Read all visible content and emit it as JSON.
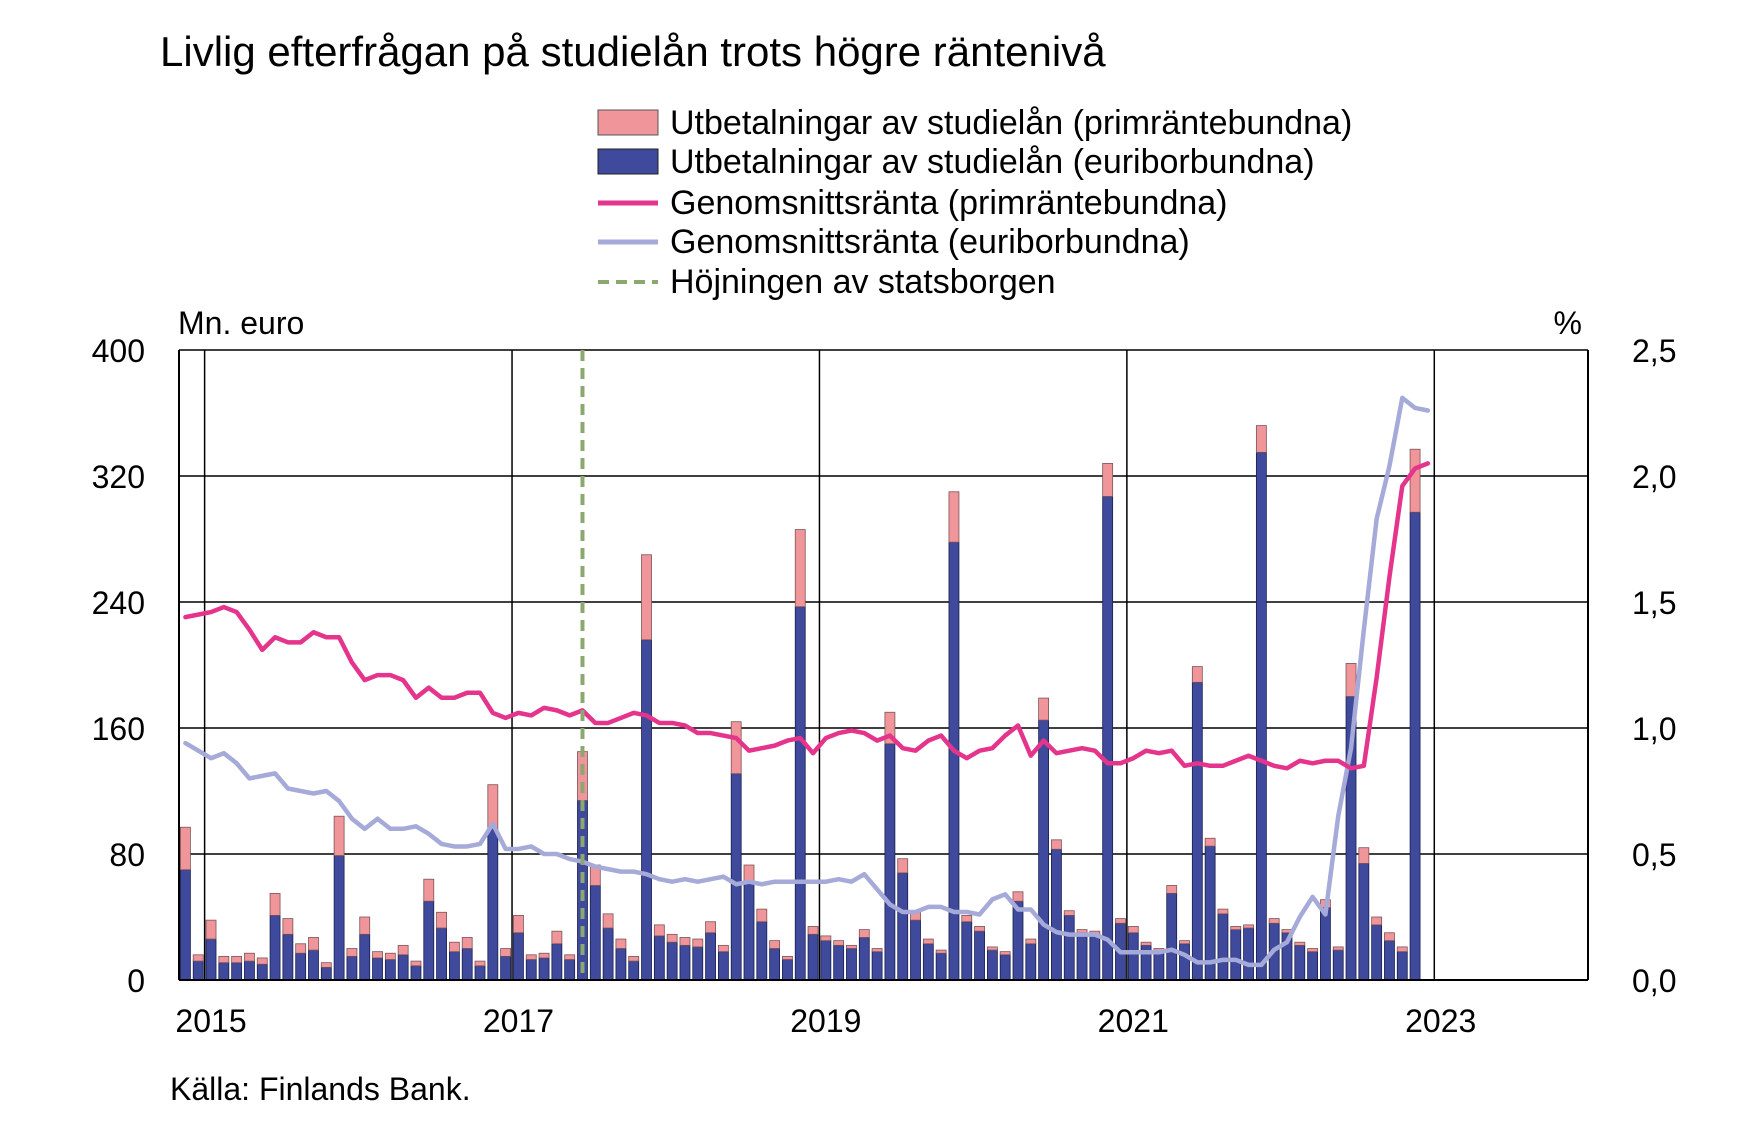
{
  "title": "Livlig efterfrågan på studielån trots högre räntenivå",
  "source": "Källa: Finlands Bank.",
  "colors": {
    "bar_prime": "#F0959A",
    "bar_euribor": "#3F4A9C",
    "line_prime": "#E5348C",
    "line_euribor": "#A5AAD9",
    "guarantee_line": "#8BA870"
  },
  "chart_data": {
    "type": "bar",
    "left_axis": {
      "label": "Mn. euro",
      "min": 0,
      "max": 400,
      "ticks": [
        "0",
        "80",
        "160",
        "240",
        "320",
        "400"
      ]
    },
    "right_axis": {
      "label": "%",
      "min": 0,
      "max": 2.5,
      "ticks": [
        "0,0",
        "0,5",
        "1,0",
        "1,5",
        "2,0",
        "2,5"
      ]
    },
    "x_axis": {
      "start": "2014-11",
      "end": "2023-12",
      "tick_labels": [
        "2015",
        "2017",
        "2019",
        "2021",
        "2023"
      ],
      "tick_years": [
        2015,
        2017,
        2019,
        2021,
        2023
      ]
    },
    "grid": true,
    "legend_position": "top",
    "legend": [
      {
        "label": "Utbetalningar av studielån (primräntebundna)",
        "kind": "bar",
        "color_key": "bar_prime"
      },
      {
        "label": "Utbetalningar av studielån (euriborbundna)",
        "kind": "bar",
        "color_key": "bar_euribor"
      },
      {
        "label": "Genomsnittsränta (primräntebundna)",
        "kind": "line",
        "color_key": "line_prime"
      },
      {
        "label": "Genomsnittsränta (euriborbundna)",
        "kind": "line",
        "color_key": "line_euribor"
      },
      {
        "label": "Höjningen av statsborgen",
        "kind": "dash",
        "color_key": "guarantee_line"
      }
    ],
    "first_month": "2014-11",
    "months": 97,
    "bars_euribor": [
      70,
      12,
      26,
      11,
      11,
      12,
      10,
      41,
      29,
      17,
      19,
      8,
      79,
      15,
      29,
      14,
      13,
      16,
      9,
      50,
      33,
      18,
      20,
      9,
      96,
      15,
      30,
      13,
      14,
      23,
      13,
      114,
      60,
      33,
      20,
      12,
      216,
      28,
      24,
      22,
      21,
      30,
      18,
      131,
      62,
      37,
      20,
      13,
      237,
      29,
      25,
      22,
      20,
      27,
      18,
      150,
      68,
      38,
      23,
      17,
      278,
      37,
      31,
      19,
      16,
      50,
      23,
      165,
      83,
      41,
      30,
      29,
      307,
      36,
      30,
      22,
      18,
      55,
      23,
      189,
      85,
      42,
      32,
      33,
      335,
      36,
      30,
      22,
      18,
      46,
      19,
      180,
      74,
      35,
      25,
      18,
      297
    ],
    "bars_prime": [
      27,
      4,
      12,
      4,
      4,
      5,
      4,
      14,
      10,
      6,
      8,
      3,
      25,
      5,
      11,
      4,
      4,
      6,
      3,
      14,
      10,
      6,
      7,
      3,
      28,
      5,
      11,
      3,
      3,
      8,
      3,
      31,
      13,
      9,
      6,
      3,
      54,
      7,
      5,
      5,
      5,
      7,
      4,
      33,
      11,
      8,
      5,
      2,
      49,
      5,
      3,
      3,
      2,
      5,
      2,
      20,
      9,
      5,
      3,
      2,
      32,
      4,
      3,
      2,
      2,
      6,
      3,
      14,
      6,
      3,
      2,
      2,
      21,
      3,
      4,
      2,
      2,
      5,
      2,
      10,
      5,
      3,
      2,
      2,
      17,
      3,
      2,
      2,
      2,
      5,
      2,
      21,
      10,
      5,
      5,
      3,
      40
    ],
    "guarantee_date": "2017-06",
    "rate_prime": {
      "x": [
        "2014-11",
        "2015-01",
        "2015-02",
        "2015-03",
        "2015-04",
        "2015-05",
        "2015-06",
        "2015-07",
        "2015-08",
        "2015-09",
        "2015-10",
        "2015-11",
        "2015-12",
        "2016-01",
        "2016-02",
        "2016-03",
        "2016-04",
        "2016-05",
        "2016-06",
        "2016-07",
        "2016-08",
        "2016-09",
        "2016-10",
        "2016-11",
        "2016-12",
        "2017-01",
        "2017-02",
        "2017-03",
        "2017-04",
        "2017-05",
        "2017-06",
        "2017-07",
        "2017-08",
        "2017-09",
        "2017-10",
        "2017-11",
        "2017-12",
        "2018-01",
        "2018-02",
        "2018-03",
        "2018-04",
        "2018-05",
        "2018-06",
        "2018-07",
        "2018-08",
        "2018-09",
        "2018-10",
        "2018-11",
        "2018-12",
        "2019-01",
        "2019-02",
        "2019-03",
        "2019-04",
        "2019-05",
        "2019-06",
        "2019-07",
        "2019-08",
        "2019-09",
        "2019-10",
        "2019-11",
        "2019-12",
        "2020-01",
        "2020-02",
        "2020-03",
        "2020-04",
        "2020-05",
        "2020-06",
        "2020-07",
        "2020-08",
        "2020-09",
        "2020-10",
        "2020-11",
        "2020-12",
        "2021-01",
        "2021-02",
        "2021-03",
        "2021-04",
        "2021-05",
        "2021-06",
        "2021-07",
        "2021-08",
        "2021-09",
        "2021-10",
        "2021-11",
        "2021-12",
        "2022-01",
        "2022-02",
        "2022-03",
        "2022-04",
        "2022-05",
        "2022-06",
        "2022-07",
        "2022-08",
        "2022-09",
        "2022-10",
        "2022-11",
        "2022-12"
      ],
      "y": [
        1.44,
        1.46,
        1.48,
        1.46,
        1.39,
        1.31,
        1.36,
        1.34,
        1.34,
        1.38,
        1.36,
        1.36,
        1.26,
        1.19,
        1.21,
        1.21,
        1.19,
        1.12,
        1.16,
        1.12,
        1.12,
        1.14,
        1.14,
        1.06,
        1.04,
        1.06,
        1.05,
        1.08,
        1.07,
        1.05,
        1.07,
        1.02,
        1.02,
        1.04,
        1.06,
        1.05,
        1.02,
        1.02,
        1.01,
        0.98,
        0.98,
        0.97,
        0.96,
        0.91,
        0.92,
        0.93,
        0.95,
        0.96,
        0.9,
        0.96,
        0.98,
        0.99,
        0.98,
        0.95,
        0.97,
        0.92,
        0.91,
        0.95,
        0.97,
        0.91,
        0.88,
        0.91,
        0.92,
        0.97,
        1.01,
        0.89,
        0.95,
        0.9,
        0.91,
        0.92,
        0.91,
        0.86,
        0.86,
        0.88,
        0.91,
        0.9,
        0.91,
        0.85,
        0.86,
        0.85,
        0.85,
        0.87,
        0.89,
        0.87,
        0.85,
        0.84,
        0.87,
        0.86,
        0.87,
        0.87,
        0.84,
        0.85,
        1.2,
        1.6,
        1.96,
        2.03,
        2.05
      ]
    },
    "rate_euribor": {
      "x": [
        "2014-11",
        "2015-01",
        "2015-02",
        "2015-03",
        "2015-04",
        "2015-05",
        "2015-06",
        "2015-07",
        "2015-08",
        "2015-09",
        "2015-10",
        "2015-11",
        "2015-12",
        "2016-01",
        "2016-02",
        "2016-03",
        "2016-04",
        "2016-05",
        "2016-06",
        "2016-07",
        "2016-08",
        "2016-09",
        "2016-10",
        "2016-11",
        "2016-12",
        "2017-01",
        "2017-02",
        "2017-03",
        "2017-04",
        "2017-05",
        "2017-06",
        "2017-07",
        "2017-08",
        "2017-09",
        "2017-10",
        "2017-11",
        "2017-12",
        "2018-01",
        "2018-02",
        "2018-03",
        "2018-04",
        "2018-05",
        "2018-06",
        "2018-07",
        "2018-08",
        "2018-09",
        "2018-10",
        "2018-11",
        "2018-12",
        "2019-01",
        "2019-02",
        "2019-03",
        "2019-04",
        "2019-05",
        "2019-06",
        "2019-07",
        "2019-08",
        "2019-09",
        "2019-10",
        "2019-11",
        "2019-12",
        "2020-01",
        "2020-02",
        "2020-03",
        "2020-04",
        "2020-05",
        "2020-06",
        "2020-07",
        "2020-08",
        "2020-09",
        "2020-10",
        "2020-11",
        "2020-12",
        "2021-01",
        "2021-02",
        "2021-03",
        "2021-04",
        "2021-05",
        "2021-06",
        "2021-07",
        "2021-08",
        "2021-09",
        "2021-10",
        "2021-11",
        "2021-12",
        "2022-01",
        "2022-02",
        "2022-03",
        "2022-04",
        "2022-05",
        "2022-06",
        "2022-07",
        "2022-08",
        "2022-09",
        "2022-10",
        "2022-11",
        "2022-12"
      ],
      "y": [
        0.94,
        0.88,
        0.9,
        0.86,
        0.8,
        0.81,
        0.82,
        0.76,
        0.75,
        0.74,
        0.75,
        0.71,
        0.64,
        0.6,
        0.64,
        0.6,
        0.6,
        0.61,
        0.58,
        0.54,
        0.53,
        0.53,
        0.54,
        0.62,
        0.52,
        0.52,
        0.53,
        0.5,
        0.5,
        0.48,
        0.47,
        0.45,
        0.44,
        0.43,
        0.43,
        0.42,
        0.4,
        0.39,
        0.4,
        0.39,
        0.4,
        0.41,
        0.38,
        0.39,
        0.38,
        0.39,
        0.39,
        0.39,
        0.39,
        0.39,
        0.4,
        0.39,
        0.42,
        0.36,
        0.3,
        0.27,
        0.27,
        0.29,
        0.29,
        0.27,
        0.27,
        0.26,
        0.32,
        0.34,
        0.28,
        0.28,
        0.22,
        0.19,
        0.18,
        0.18,
        0.18,
        0.16,
        0.11,
        0.11,
        0.11,
        0.11,
        0.12,
        0.1,
        0.07,
        0.07,
        0.08,
        0.08,
        0.06,
        0.06,
        0.12,
        0.15,
        0.25,
        0.33,
        0.26,
        0.65,
        0.92,
        1.39,
        1.83,
        2.04,
        2.31,
        2.27,
        2.26
      ]
    }
  }
}
